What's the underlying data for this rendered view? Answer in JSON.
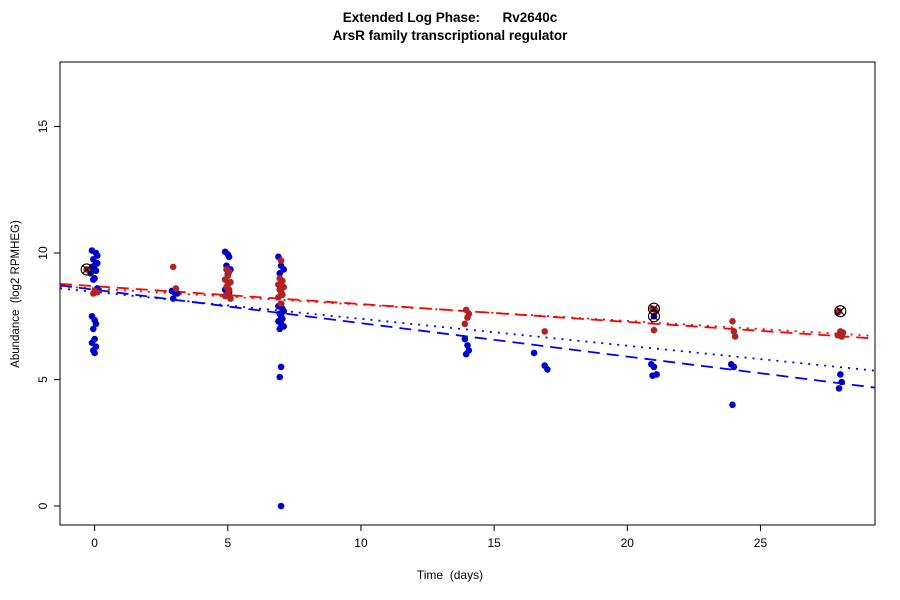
{
  "figure": {
    "title_line1": "Extended Log Phase:      Rv2640c",
    "title_line2": "ArsR family transcriptional regulator",
    "xlabel": "Time  (days)",
    "ylabel": "Abundance  (log2 RPMHEG)"
  },
  "chart_data": {
    "type": "scatter",
    "title": "Extended Log Phase: Rv2640c",
    "subtitle": "ArsR family transcriptional regulator",
    "xlabel": "Time (days)",
    "ylabel": "Abundance (log2 RPMHEG)",
    "xlim": [
      -1.3,
      29.3
    ],
    "ylim": [
      -0.75,
      17.55
    ],
    "xticks": [
      0,
      5,
      10,
      15,
      20,
      25
    ],
    "yticks": [
      0,
      5,
      10,
      15
    ],
    "grid": false,
    "legend": "none",
    "series": [
      {
        "name": "blue-group",
        "color": "#0000CC",
        "marker": "filled-circle",
        "points": [
          [
            -0.1,
            10.1
          ],
          [
            0.05,
            10.0
          ],
          [
            0.1,
            9.9
          ],
          [
            -0.05,
            9.75
          ],
          [
            0.1,
            9.6
          ],
          [
            0.0,
            9.5
          ],
          [
            -0.1,
            9.45
          ],
          [
            0.05,
            9.3
          ],
          [
            -0.15,
            9.2
          ],
          [
            0.0,
            9.0
          ],
          [
            -0.05,
            8.95
          ],
          [
            0.1,
            8.6
          ],
          [
            0.0,
            8.45
          ],
          [
            -0.1,
            7.5
          ],
          [
            0.0,
            7.35
          ],
          [
            0.05,
            7.2
          ],
          [
            -0.05,
            7.0
          ],
          [
            0.0,
            6.6
          ],
          [
            -0.1,
            6.45
          ],
          [
            0.05,
            6.3
          ],
          [
            -0.05,
            6.15
          ],
          [
            0.0,
            6.05
          ],
          [
            2.9,
            8.5
          ],
          [
            3.0,
            8.45
          ],
          [
            3.1,
            8.4
          ],
          [
            2.95,
            8.2
          ],
          [
            4.9,
            10.05
          ],
          [
            5.0,
            9.95
          ],
          [
            5.05,
            9.85
          ],
          [
            4.95,
            9.5
          ],
          [
            5.1,
            9.35
          ],
          [
            5.0,
            9.15
          ],
          [
            4.9,
            8.55
          ],
          [
            5.05,
            8.45
          ],
          [
            6.9,
            9.85
          ],
          [
            7.0,
            9.5
          ],
          [
            7.1,
            9.35
          ],
          [
            6.95,
            9.2
          ],
          [
            7.0,
            8.0
          ],
          [
            6.9,
            7.9
          ],
          [
            7.05,
            7.8
          ],
          [
            7.1,
            7.7
          ],
          [
            6.95,
            7.6
          ],
          [
            7.0,
            7.5
          ],
          [
            7.05,
            7.4
          ],
          [
            6.9,
            7.3
          ],
          [
            7.0,
            7.2
          ],
          [
            7.1,
            7.1
          ],
          [
            6.95,
            7.0
          ],
          [
            7.0,
            5.5
          ],
          [
            6.95,
            5.1
          ],
          [
            7.0,
            0.0
          ],
          [
            13.9,
            6.6
          ],
          [
            14.0,
            6.35
          ],
          [
            14.05,
            6.15
          ],
          [
            13.95,
            6.0
          ],
          [
            16.5,
            6.05
          ],
          [
            16.9,
            5.55
          ],
          [
            17.0,
            5.4
          ],
          [
            21.0,
            7.5
          ],
          [
            20.9,
            5.6
          ],
          [
            21.0,
            5.5
          ],
          [
            21.1,
            5.2
          ],
          [
            20.95,
            5.15
          ],
          [
            23.9,
            5.6
          ],
          [
            24.0,
            5.5
          ],
          [
            23.95,
            4.0
          ],
          [
            27.9,
            7.65
          ],
          [
            28.0,
            5.2
          ],
          [
            28.05,
            4.9
          ],
          [
            27.95,
            4.65
          ]
        ]
      },
      {
        "name": "red-group",
        "color": "#B22222",
        "marker": "filled-circle",
        "points": [
          [
            -0.3,
            9.35
          ],
          [
            0.0,
            8.5
          ],
          [
            0.1,
            8.45
          ],
          [
            -0.05,
            8.4
          ],
          [
            2.95,
            9.45
          ],
          [
            3.05,
            8.6
          ],
          [
            4.95,
            9.35
          ],
          [
            5.05,
            9.25
          ],
          [
            5.0,
            9.1
          ],
          [
            4.9,
            8.95
          ],
          [
            5.1,
            8.85
          ],
          [
            5.0,
            8.75
          ],
          [
            4.95,
            8.65
          ],
          [
            5.05,
            8.55
          ],
          [
            5.0,
            8.4
          ],
          [
            4.9,
            8.3
          ],
          [
            5.1,
            8.2
          ],
          [
            7.0,
            9.7
          ],
          [
            6.95,
            9.0
          ],
          [
            7.05,
            8.9
          ],
          [
            7.0,
            8.8
          ],
          [
            6.9,
            8.75
          ],
          [
            7.1,
            8.65
          ],
          [
            6.95,
            8.55
          ],
          [
            7.0,
            8.45
          ],
          [
            7.05,
            8.35
          ],
          [
            6.9,
            8.25
          ],
          [
            7.0,
            8.0
          ],
          [
            13.95,
            7.75
          ],
          [
            14.05,
            7.6
          ],
          [
            14.0,
            7.45
          ],
          [
            13.9,
            7.2
          ],
          [
            16.9,
            6.9
          ],
          [
            20.95,
            7.8
          ],
          [
            21.05,
            7.75
          ],
          [
            21.0,
            6.95
          ],
          [
            23.95,
            7.3
          ],
          [
            24.0,
            6.9
          ],
          [
            24.05,
            6.7
          ],
          [
            27.95,
            7.7
          ],
          [
            28.0,
            6.9
          ],
          [
            28.1,
            6.85
          ],
          [
            27.9,
            6.75
          ],
          [
            28.05,
            6.7
          ]
        ]
      }
    ],
    "highlighted_points": {
      "marker": "circle-with-x",
      "color": "#000000",
      "points": [
        [
          -0.3,
          9.35
        ],
        [
          21.0,
          7.8
        ],
        [
          21.0,
          7.5
        ],
        [
          28.0,
          7.7
        ]
      ]
    },
    "trend_lines": [
      {
        "name": "red-dashed-fit",
        "color": "#FF0000",
        "style": "longdash",
        "x1": -1.3,
        "y1": 8.78,
        "x2": 29.3,
        "y2": 6.62
      },
      {
        "name": "red-dotted-fit",
        "color": "#FF0000",
        "style": "dotted",
        "x1": -1.3,
        "y1": 8.68,
        "x2": 29.3,
        "y2": 6.72
      },
      {
        "name": "blue-dashed-fit",
        "color": "#0000FF",
        "style": "longdash",
        "x1": -1.3,
        "y1": 8.72,
        "x2": 29.3,
        "y2": 4.68
      },
      {
        "name": "blue-dotted-fit",
        "color": "#0000FF",
        "style": "dotted",
        "x1": -1.3,
        "y1": 8.6,
        "x2": 29.3,
        "y2": 5.35
      }
    ]
  }
}
